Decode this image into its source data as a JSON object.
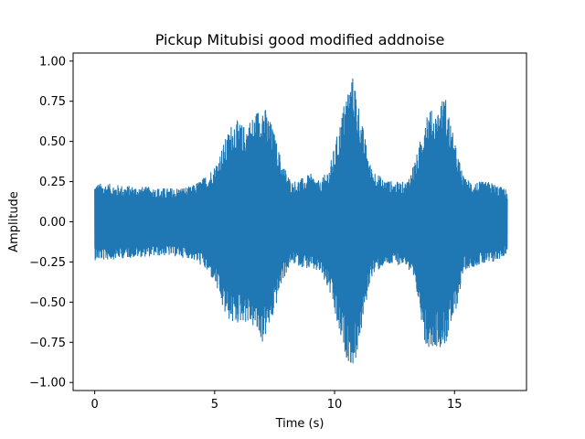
{
  "chart_data": {
    "type": "line",
    "title": "Pickup Mitubisi good modified addnoise",
    "xlabel": "Time (s)",
    "ylabel": "Amplitude",
    "xlim": [
      -0.9,
      18.0
    ],
    "ylim": [
      -1.05,
      1.05
    ],
    "x_ticks": [
      0,
      5,
      10,
      15
    ],
    "y_ticks": [
      -1.0,
      -0.75,
      -0.5,
      -0.25,
      0.0,
      0.25,
      0.5,
      0.75,
      1.0
    ],
    "x_tick_labels": [
      "0",
      "5",
      "10",
      "15"
    ],
    "y_tick_labels": [
      "−1.00",
      "−0.75",
      "−0.50",
      "−0.25",
      "0.00",
      "0.25",
      "0.50",
      "0.75",
      "1.00"
    ],
    "grid": false,
    "color": "#1f77b4",
    "series": [
      {
        "duration_s": 17.2,
        "envelope": {
          "t": [
            0.0,
            0.5,
            1.0,
            2.0,
            3.0,
            4.0,
            4.5,
            5.0,
            5.4,
            5.8,
            6.2,
            6.6,
            7.0,
            7.4,
            7.8,
            8.2,
            8.6,
            9.0,
            9.4,
            9.8,
            10.2,
            10.5,
            10.8,
            11.1,
            11.5,
            12.0,
            12.5,
            13.0,
            13.5,
            13.8,
            14.2,
            14.6,
            15.0,
            15.4,
            16.0,
            16.5,
            17.2
          ],
          "upper": [
            0.24,
            0.24,
            0.23,
            0.22,
            0.21,
            0.22,
            0.27,
            0.35,
            0.5,
            0.65,
            0.6,
            0.66,
            0.75,
            0.6,
            0.38,
            0.25,
            0.27,
            0.3,
            0.25,
            0.35,
            0.6,
            0.82,
            0.92,
            0.65,
            0.35,
            0.27,
            0.25,
            0.25,
            0.45,
            0.72,
            0.68,
            0.8,
            0.5,
            0.27,
            0.25,
            0.25,
            0.2
          ],
          "lower": [
            -0.24,
            -0.24,
            -0.23,
            -0.22,
            -0.21,
            -0.23,
            -0.28,
            -0.38,
            -0.58,
            -0.65,
            -0.62,
            -0.66,
            -0.76,
            -0.62,
            -0.38,
            -0.26,
            -0.28,
            -0.3,
            -0.32,
            -0.45,
            -0.72,
            -0.85,
            -0.92,
            -0.7,
            -0.35,
            -0.28,
            -0.27,
            -0.27,
            -0.5,
            -0.78,
            -0.78,
            -0.78,
            -0.6,
            -0.3,
            -0.27,
            -0.27,
            -0.2
          ]
        }
      }
    ]
  }
}
